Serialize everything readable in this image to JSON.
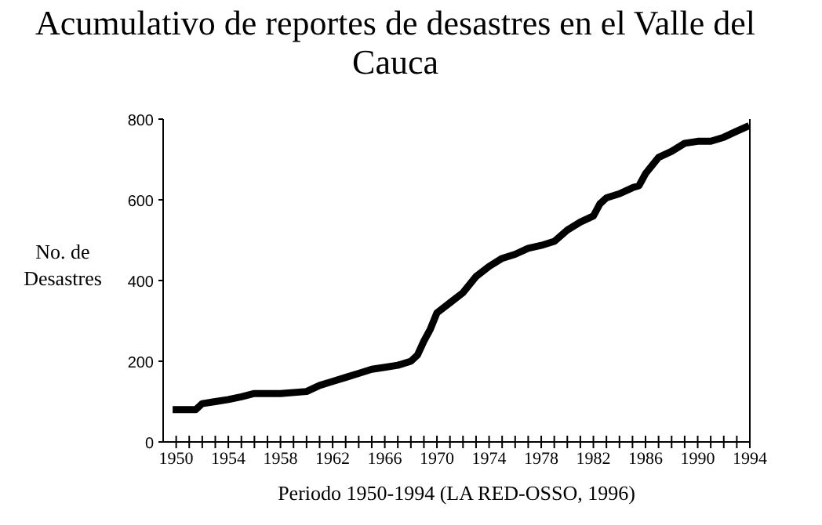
{
  "chart_data": {
    "type": "line",
    "title": "Acumulativo de reportes de desastres en el Valle del Cauca",
    "xlabel": "Periodo 1950-1994 (LA RED-OSSO, 1996)",
    "ylabel": "No. de Desastres",
    "x": [
      1950,
      1951.5,
      1952,
      1953,
      1954,
      1955,
      1956,
      1958,
      1960,
      1961,
      1962,
      1963,
      1964,
      1965,
      1966,
      1967,
      1968,
      1968.5,
      1969,
      1969.5,
      1970,
      1971,
      1972,
      1973,
      1974,
      1975,
      1976,
      1977,
      1978,
      1979,
      1980,
      1981,
      1982,
      1982.5,
      1983,
      1984,
      1985,
      1985.5,
      1986,
      1987,
      1988,
      1989,
      1990,
      1991,
      1992,
      1993,
      1993.7
    ],
    "series": [
      {
        "color": "#000000",
        "values": [
          80,
          80,
          95,
          100,
          105,
          112,
          120,
          120,
          125,
          140,
          150,
          160,
          170,
          180,
          185,
          190,
          200,
          215,
          250,
          280,
          320,
          345,
          370,
          410,
          435,
          455,
          465,
          480,
          487,
          497,
          525,
          545,
          560,
          590,
          605,
          615,
          630,
          635,
          665,
          705,
          720,
          740,
          745,
          745,
          755,
          770,
          780
        ]
      }
    ],
    "xlim": [
      1949,
      1994
    ],
    "xticks": [
      {
        "value": 1950,
        "label": "1950"
      },
      {
        "value": 1951,
        "label": null
      },
      {
        "value": 1952,
        "label": null
      },
      {
        "value": 1953,
        "label": null
      },
      {
        "value": 1954,
        "label": "1954"
      },
      {
        "value": 1955,
        "label": null
      },
      {
        "value": 1956,
        "label": null
      },
      {
        "value": 1957,
        "label": null
      },
      {
        "value": 1958,
        "label": "1958"
      },
      {
        "value": 1959,
        "label": null
      },
      {
        "value": 1960,
        "label": null
      },
      {
        "value": 1961,
        "label": null
      },
      {
        "value": 1962,
        "label": "1962"
      },
      {
        "value": 1963,
        "label": null
      },
      {
        "value": 1964,
        "label": null
      },
      {
        "value": 1965,
        "label": null
      },
      {
        "value": 1966,
        "label": "1966"
      },
      {
        "value": 1967,
        "label": null
      },
      {
        "value": 1968,
        "label": null
      },
      {
        "value": 1969,
        "label": null
      },
      {
        "value": 1970,
        "label": "1970"
      },
      {
        "value": 1971,
        "label": null
      },
      {
        "value": 1972,
        "label": null
      },
      {
        "value": 1973,
        "label": null
      },
      {
        "value": 1974,
        "label": "1974"
      },
      {
        "value": 1975,
        "label": null
      },
      {
        "value": 1976,
        "label": null
      },
      {
        "value": 1977,
        "label": null
      },
      {
        "value": 1978,
        "label": "1978"
      },
      {
        "value": 1979,
        "label": null
      },
      {
        "value": 1980,
        "label": null
      },
      {
        "value": 1981,
        "label": null
      },
      {
        "value": 1982,
        "label": "1982"
      },
      {
        "value": 1983,
        "label": null
      },
      {
        "value": 1984,
        "label": null
      },
      {
        "value": 1985,
        "label": null
      },
      {
        "value": 1986,
        "label": "1986"
      },
      {
        "value": 1987,
        "label": null
      },
      {
        "value": 1988,
        "label": null
      },
      {
        "value": 1989,
        "label": null
      },
      {
        "value": 1990,
        "label": "1990"
      },
      {
        "value": 1991,
        "label": null
      },
      {
        "value": 1992,
        "label": null
      },
      {
        "value": 1993,
        "label": null
      },
      {
        "value": 1994,
        "label": "1994"
      }
    ],
    "ylim": [
      0,
      800
    ],
    "yticks": [
      0,
      200,
      400,
      600,
      800
    ],
    "grid": false,
    "marker": "none",
    "line_style": "solid"
  }
}
